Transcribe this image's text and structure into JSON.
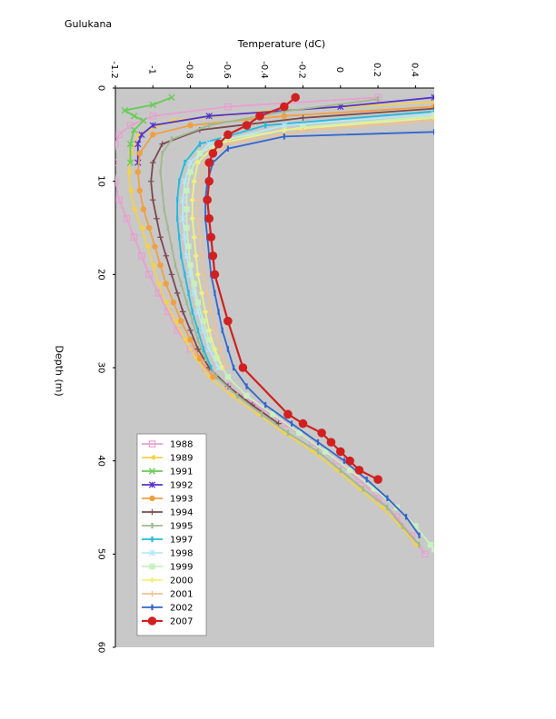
{
  "station": "Gulukana",
  "chart_data": {
    "type": "line",
    "xlabel": "Temperature (dC)",
    "ylabel": "Depth (m)",
    "xlim": [
      -1.2,
      0.5
    ],
    "ylim": [
      0,
      60
    ],
    "x_ticks": [
      "-1.2",
      "-1",
      "-0.8",
      "-0.6",
      "-0.4",
      "-0.2",
      "0",
      "0.2",
      "0.4"
    ],
    "y_ticks": [
      "0",
      "10",
      "20",
      "30",
      "40",
      "50",
      "60"
    ],
    "y_reversed": true,
    "grid": false,
    "legend_position": "bottom-left",
    "series": [
      {
        "name": "1988",
        "color": "#e8a0d0",
        "marker": "square-open",
        "points": [
          [
            0.2,
            1
          ],
          [
            -0.6,
            2
          ],
          [
            -1.0,
            3
          ],
          [
            -1.12,
            4
          ],
          [
            -1.18,
            5
          ],
          [
            -1.2,
            6
          ],
          [
            -1.21,
            8
          ],
          [
            -1.2,
            10
          ],
          [
            -1.18,
            12
          ],
          [
            -1.14,
            14
          ],
          [
            -1.1,
            16
          ],
          [
            -1.06,
            18
          ],
          [
            -1.02,
            20
          ],
          [
            -0.97,
            22
          ],
          [
            -0.92,
            24
          ],
          [
            -0.87,
            26
          ],
          [
            -0.8,
            28
          ],
          [
            -0.72,
            30
          ],
          [
            -0.6,
            32
          ],
          [
            -0.45,
            34
          ],
          [
            -0.3,
            36
          ],
          [
            -0.15,
            38
          ],
          [
            -0.02,
            40
          ],
          [
            0.1,
            42
          ],
          [
            0.2,
            44
          ],
          [
            0.3,
            46
          ],
          [
            0.38,
            48
          ],
          [
            0.45,
            50
          ]
        ]
      },
      {
        "name": "1989",
        "color": "#f3d24a",
        "marker": "triangle",
        "points": [
          [
            0.5,
            1.5
          ],
          [
            -0.4,
            2.5
          ],
          [
            -0.9,
            3.5
          ],
          [
            -1.08,
            5
          ],
          [
            -1.12,
            7
          ],
          [
            -1.13,
            9
          ],
          [
            -1.12,
            11
          ],
          [
            -1.1,
            13
          ],
          [
            -1.06,
            15
          ],
          [
            -1.03,
            17
          ],
          [
            -1.0,
            19
          ],
          [
            -0.97,
            21
          ],
          [
            -0.93,
            23
          ],
          [
            -0.88,
            25
          ],
          [
            -0.83,
            27
          ],
          [
            -0.77,
            29
          ],
          [
            -0.7,
            31
          ],
          [
            -0.58,
            33
          ],
          [
            -0.44,
            35
          ],
          [
            -0.3,
            37
          ],
          [
            -0.15,
            39
          ],
          [
            -0.02,
            41
          ],
          [
            0.1,
            43
          ],
          [
            0.22,
            45
          ],
          [
            0.32,
            47
          ],
          [
            0.4,
            49
          ]
        ]
      },
      {
        "name": "1991",
        "color": "#66cc55",
        "marker": "x",
        "points": [
          [
            -0.9,
            1.0
          ],
          [
            -1.0,
            1.8
          ],
          [
            -1.15,
            2.4
          ],
          [
            -1.1,
            3.0
          ],
          [
            -1.05,
            3.5
          ],
          [
            -1.1,
            4.5
          ],
          [
            -1.12,
            6
          ],
          [
            -1.12,
            8
          ]
        ]
      },
      {
        "name": "1992",
        "color": "#5533cc",
        "marker": "asterisk",
        "points": [
          [
            0.5,
            1.0
          ],
          [
            0.0,
            2.0
          ],
          [
            -0.7,
            3.0
          ],
          [
            -1.0,
            4.0
          ],
          [
            -1.06,
            5
          ],
          [
            -1.08,
            6
          ],
          [
            -1.08,
            8
          ]
        ]
      },
      {
        "name": "1993",
        "color": "#f0a040",
        "marker": "circle",
        "points": [
          [
            0.5,
            2.0
          ],
          [
            -0.3,
            3.0
          ],
          [
            -0.8,
            4.0
          ],
          [
            -1.0,
            5
          ],
          [
            -1.07,
            7
          ],
          [
            -1.08,
            9
          ],
          [
            -1.07,
            11
          ],
          [
            -1.05,
            13
          ],
          [
            -1.02,
            15
          ],
          [
            -0.99,
            17
          ],
          [
            -0.96,
            19
          ],
          [
            -0.93,
            21
          ],
          [
            -0.89,
            23
          ],
          [
            -0.85,
            25
          ],
          [
            -0.8,
            27
          ],
          [
            -0.75,
            29
          ],
          [
            -0.68,
            31
          ]
        ]
      },
      {
        "name": "1994",
        "color": "#7a4a50",
        "marker": "plus",
        "points": [
          [
            0.5,
            2.2
          ],
          [
            -0.2,
            3.2
          ],
          [
            -0.75,
            4.5
          ],
          [
            -0.95,
            6
          ],
          [
            -1.0,
            8
          ],
          [
            -1.01,
            10
          ],
          [
            -1.0,
            12
          ],
          [
            -0.98,
            14
          ],
          [
            -0.96,
            16
          ],
          [
            -0.93,
            18
          ],
          [
            -0.9,
            20
          ],
          [
            -0.87,
            22
          ],
          [
            -0.84,
            24
          ],
          [
            -0.8,
            26
          ],
          [
            -0.76,
            28
          ],
          [
            -0.7,
            30
          ],
          [
            -0.6,
            32
          ],
          [
            -0.47,
            34
          ],
          [
            -0.33,
            36
          ]
        ]
      },
      {
        "name": "1995",
        "color": "#a0b890",
        "marker": "dash",
        "points": [
          [
            0.2,
            1.2
          ],
          [
            -0.3,
            2.5
          ],
          [
            -0.7,
            4
          ],
          [
            -0.9,
            5.5
          ],
          [
            -0.95,
            7
          ],
          [
            -0.96,
            9
          ],
          [
            -0.95,
            11
          ],
          [
            -0.94,
            13
          ],
          [
            -0.92,
            15
          ],
          [
            -0.9,
            17
          ],
          [
            -0.88,
            19
          ],
          [
            -0.85,
            21
          ],
          [
            -0.82,
            23
          ],
          [
            -0.79,
            25
          ],
          [
            -0.76,
            27
          ],
          [
            -0.72,
            29
          ],
          [
            -0.66,
            31
          ],
          [
            -0.55,
            33
          ],
          [
            -0.42,
            35
          ],
          [
            -0.28,
            37
          ],
          [
            -0.12,
            39
          ],
          [
            0.0,
            41
          ],
          [
            0.12,
            43
          ],
          [
            0.25,
            45
          ],
          [
            0.33,
            47
          ],
          [
            0.42,
            49
          ]
        ]
      },
      {
        "name": "1997",
        "color": "#22bbdd",
        "marker": "dash",
        "points": [
          [
            0.5,
            2.5
          ],
          [
            -0.4,
            4.0
          ],
          [
            -0.75,
            6
          ],
          [
            -0.83,
            8
          ],
          [
            -0.86,
            10
          ],
          [
            -0.87,
            12
          ],
          [
            -0.87,
            14
          ],
          [
            -0.86,
            16
          ],
          [
            -0.85,
            18
          ],
          [
            -0.83,
            20
          ],
          [
            -0.81,
            22
          ],
          [
            -0.79,
            24
          ],
          [
            -0.76,
            26
          ],
          [
            -0.73,
            28
          ],
          [
            -0.69,
            30
          ]
        ]
      },
      {
        "name": "1998",
        "color": "#b8e8f8",
        "marker": "asterisk",
        "points": [
          [
            0.5,
            2.8
          ],
          [
            -0.3,
            4.0
          ],
          [
            -0.7,
            6
          ],
          [
            -0.8,
            8
          ],
          [
            -0.83,
            10
          ],
          [
            -0.84,
            12
          ],
          [
            -0.84,
            14
          ],
          [
            -0.83,
            16
          ],
          [
            -0.82,
            18
          ],
          [
            -0.8,
            20
          ],
          [
            -0.78,
            22
          ],
          [
            -0.76,
            24
          ],
          [
            -0.73,
            26
          ],
          [
            -0.7,
            28
          ],
          [
            -0.65,
            30
          ]
        ]
      },
      {
        "name": "1999",
        "color": "#c8f0c0",
        "marker": "square",
        "points": [
          [
            0.5,
            3.0
          ],
          [
            -0.2,
            4.2
          ],
          [
            -0.62,
            5.5
          ],
          [
            -0.75,
            7
          ],
          [
            -0.8,
            9
          ],
          [
            -0.82,
            11
          ],
          [
            -0.82,
            13
          ],
          [
            -0.82,
            15
          ],
          [
            -0.81,
            17
          ],
          [
            -0.8,
            19
          ],
          [
            -0.78,
            21
          ],
          [
            -0.76,
            23
          ],
          [
            -0.73,
            25
          ],
          [
            -0.7,
            27
          ],
          [
            -0.66,
            29
          ],
          [
            -0.6,
            31
          ],
          [
            -0.5,
            33
          ],
          [
            -0.36,
            35
          ],
          [
            -0.22,
            37
          ],
          [
            -0.08,
            39
          ],
          [
            0.05,
            41
          ],
          [
            0.18,
            43
          ],
          [
            0.3,
            45
          ],
          [
            0.4,
            47
          ],
          [
            0.48,
            49
          ],
          [
            0.5,
            49.5
          ]
        ]
      },
      {
        "name": "2000",
        "color": "#f0f080",
        "marker": "diamond",
        "points": [
          [
            0.5,
            3.2
          ],
          [
            -0.3,
            4.5
          ],
          [
            -0.66,
            6
          ],
          [
            -0.76,
            8
          ],
          [
            -0.78,
            10
          ],
          [
            -0.79,
            12
          ],
          [
            -0.79,
            14
          ],
          [
            -0.78,
            16
          ],
          [
            -0.77,
            18
          ],
          [
            -0.76,
            20
          ],
          [
            -0.74,
            22
          ],
          [
            -0.72,
            24
          ],
          [
            -0.7,
            26
          ],
          [
            -0.67,
            28
          ],
          [
            -0.63,
            30
          ]
        ]
      },
      {
        "name": "2001",
        "color": "#f0c090",
        "marker": "plus",
        "points": [
          [
            0.5,
            3.5
          ],
          [
            -0.2,
            4.6
          ],
          [
            -0.6,
            6
          ],
          [
            -0.72,
            8
          ],
          [
            -0.75,
            10
          ],
          [
            -0.76,
            12
          ],
          [
            -0.76,
            14
          ],
          [
            -0.75,
            16
          ],
          [
            -0.74,
            18
          ],
          [
            -0.73,
            20
          ],
          [
            -0.71,
            22
          ],
          [
            -0.69,
            24
          ],
          [
            -0.67,
            26
          ],
          [
            -0.64,
            28
          ],
          [
            -0.61,
            30
          ]
        ]
      },
      {
        "name": "2002",
        "color": "#3366cc",
        "marker": "dash",
        "points": [
          [
            0.5,
            4.7
          ],
          [
            -0.3,
            5.2
          ],
          [
            -0.6,
            6.5
          ],
          [
            -0.68,
            8
          ],
          [
            -0.71,
            10
          ],
          [
            -0.72,
            12
          ],
          [
            -0.72,
            14
          ],
          [
            -0.71,
            16
          ],
          [
            -0.7,
            18
          ],
          [
            -0.69,
            20
          ],
          [
            -0.67,
            22
          ],
          [
            -0.65,
            24
          ],
          [
            -0.63,
            26
          ],
          [
            -0.6,
            28
          ],
          [
            -0.57,
            30
          ],
          [
            -0.5,
            32
          ],
          [
            -0.4,
            34
          ],
          [
            -0.26,
            36
          ],
          [
            -0.12,
            38
          ],
          [
            0.02,
            40
          ],
          [
            0.14,
            42
          ],
          [
            0.25,
            44
          ],
          [
            0.35,
            46
          ],
          [
            0.42,
            48
          ]
        ]
      },
      {
        "name": "2007",
        "color": "#d02020",
        "marker": "circle-filled",
        "points": [
          [
            -0.24,
            1
          ],
          [
            -0.3,
            2
          ],
          [
            -0.43,
            3
          ],
          [
            -0.5,
            4
          ],
          [
            -0.6,
            5
          ],
          [
            -0.65,
            6
          ],
          [
            -0.68,
            7
          ],
          [
            -0.7,
            8
          ],
          [
            -0.7,
            10
          ],
          [
            -0.71,
            12
          ],
          [
            -0.7,
            14
          ],
          [
            -0.69,
            16
          ],
          [
            -0.68,
            18
          ],
          [
            -0.67,
            20
          ],
          [
            -0.6,
            25
          ],
          [
            -0.52,
            30
          ],
          [
            -0.28,
            35
          ],
          [
            -0.2,
            36
          ],
          [
            -0.1,
            37
          ],
          [
            -0.05,
            38
          ],
          [
            0.0,
            39
          ],
          [
            0.05,
            40
          ],
          [
            0.1,
            41
          ],
          [
            0.2,
            42
          ]
        ]
      }
    ]
  }
}
